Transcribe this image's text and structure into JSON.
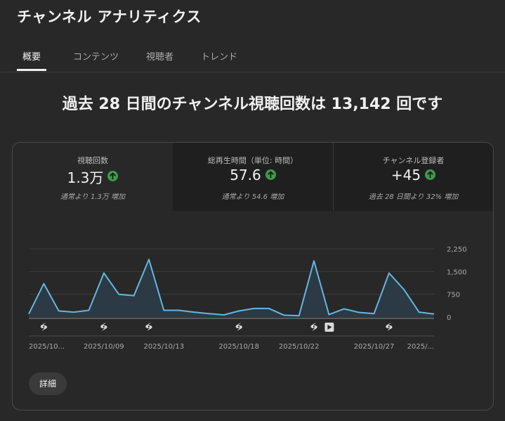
{
  "app": {
    "title": "チャンネル アナリティクス"
  },
  "tabs": [
    {
      "label": "概要",
      "active": true
    },
    {
      "label": "コンテンツ",
      "active": false
    },
    {
      "label": "視聴者",
      "active": false
    },
    {
      "label": "トレンド",
      "active": false
    }
  ],
  "headline": "過去 28 日間のチャンネル視聴回数は 13,142 回です",
  "metrics": [
    {
      "label": "視聴回数",
      "value": "1.3万",
      "sub": "通常より 1.3万 増加",
      "trend_icon": "arrow-up-icon"
    },
    {
      "label": "総再生時間（単位: 時間）",
      "value": "57.6",
      "sub": "通常より 54.6 増加",
      "trend_icon": "arrow-up-icon"
    },
    {
      "label": "チャンネル登録者",
      "value": "+45",
      "sub": "過去 28 日間より 32% 増加",
      "trend_icon": "arrow-up-icon"
    }
  ],
  "details_button": "詳細",
  "colors": {
    "line": "#65b6e0",
    "area": "#2b3a44",
    "up_badge": "#3f9b4a",
    "background": "#282828"
  },
  "chart_data": {
    "type": "area",
    "y_ticks": [
      "2,250",
      "1,500",
      "750",
      "0"
    ],
    "ylim": [
      0,
      2250
    ],
    "x_tick_labels": [
      {
        "index": 0,
        "label": "2025/10..."
      },
      {
        "index": 5,
        "label": "2025/10/09"
      },
      {
        "index": 9,
        "label": "2025/10/13"
      },
      {
        "index": 14,
        "label": "2025/10/18"
      },
      {
        "index": 18,
        "label": "2025/10/22"
      },
      {
        "index": 23,
        "label": "2025/10/27"
      },
      {
        "index": 26,
        "label": "2025/..."
      }
    ],
    "values": [
      100,
      1100,
      200,
      160,
      220,
      1450,
      750,
      700,
      1900,
      220,
      220,
      160,
      110,
      70,
      200,
      280,
      280,
      60,
      40,
      1850,
      80,
      270,
      150,
      110,
      1450,
      900,
      160,
      100
    ],
    "markers": [
      {
        "index": 1,
        "icon": "shorts-icon"
      },
      {
        "index": 5,
        "icon": "shorts-icon"
      },
      {
        "index": 8,
        "icon": "shorts-icon"
      },
      {
        "index": 14,
        "icon": "shorts-icon"
      },
      {
        "index": 19,
        "icon": "shorts-icon"
      },
      {
        "index": 20,
        "icon": "video-icon"
      },
      {
        "index": 24,
        "icon": "shorts-icon"
      }
    ],
    "grid": true
  }
}
